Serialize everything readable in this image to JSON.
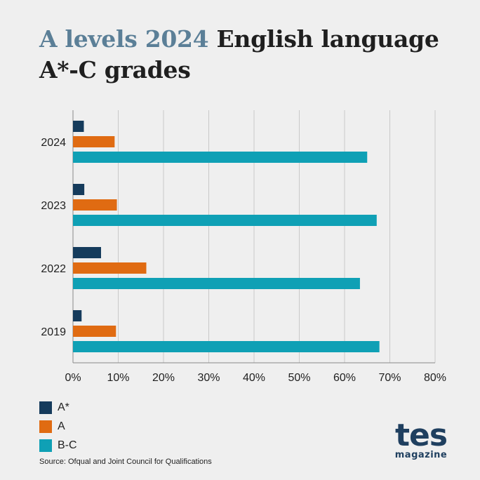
{
  "header": {
    "title_accent": "A levels 2024",
    "title_rest": " English language",
    "title_line2": "A*-C grades"
  },
  "chart_data": {
    "type": "bar",
    "orientation": "horizontal",
    "title": "A levels 2024 English language A*-C grades",
    "xlabel": "",
    "ylabel": "",
    "categories": [
      "2024",
      "2023",
      "2022",
      "2019"
    ],
    "series": [
      {
        "name": "A*",
        "color": "#153b5c",
        "values": [
          2.4,
          2.5,
          6.2,
          1.9
        ]
      },
      {
        "name": "A",
        "color": "#e06b12",
        "values": [
          9.2,
          9.7,
          16.2,
          9.5
        ]
      },
      {
        "name": "B-C",
        "color": "#0fa0b5",
        "values": [
          65.0,
          67.1,
          63.4,
          67.7
        ]
      }
    ],
    "xlim": [
      0,
      80
    ],
    "x_ticks": [
      0,
      10,
      20,
      30,
      40,
      50,
      60,
      70,
      80
    ],
    "tick_format": "{v}%",
    "grid": true,
    "legend_placement": "bottom-left"
  },
  "legend": [
    {
      "label": "A*",
      "color": "#153b5c"
    },
    {
      "label": "A",
      "color": "#e06b12"
    },
    {
      "label": "B-C",
      "color": "#0fa0b5"
    }
  ],
  "footer": {
    "source": "Source: Ofqual and Joint Council for Qualifications",
    "logo_main": "tes",
    "logo_sub": "magazine"
  }
}
